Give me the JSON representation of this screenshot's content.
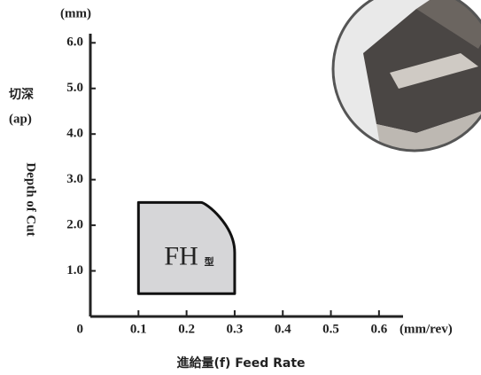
{
  "chart_data": {
    "type": "region",
    "y_unit": "(mm)",
    "y_label_cn": "切深",
    "y_label_symbol": "(ap)",
    "y_label": "Depth of Cut",
    "x_unit": "(mm/rev)",
    "x_label": "進給量(f) Feed Rate",
    "xlim": [
      0,
      0.65
    ],
    "ylim": [
      0,
      6.2
    ],
    "xticks": [
      0,
      0.1,
      0.2,
      0.3,
      0.4,
      0.5,
      0.6
    ],
    "yticks": [
      {
        "value": 1,
        "label": "1.0"
      },
      {
        "value": 2,
        "label": "2.0"
      },
      {
        "value": 3,
        "label": "3.0"
      },
      {
        "value": 4,
        "label": "4.0"
      },
      {
        "value": 5,
        "label": "5.0"
      },
      {
        "value": 6,
        "label": "6.0"
      }
    ],
    "regions": [
      {
        "name": "FH",
        "suffix": "型",
        "color": "#d6d6d8",
        "x": [
          0.1,
          0.1,
          0.23,
          0.3,
          0.3
        ],
        "y": [
          0.5,
          2.5,
          2.5,
          1.4,
          0.5
        ]
      }
    ]
  }
}
